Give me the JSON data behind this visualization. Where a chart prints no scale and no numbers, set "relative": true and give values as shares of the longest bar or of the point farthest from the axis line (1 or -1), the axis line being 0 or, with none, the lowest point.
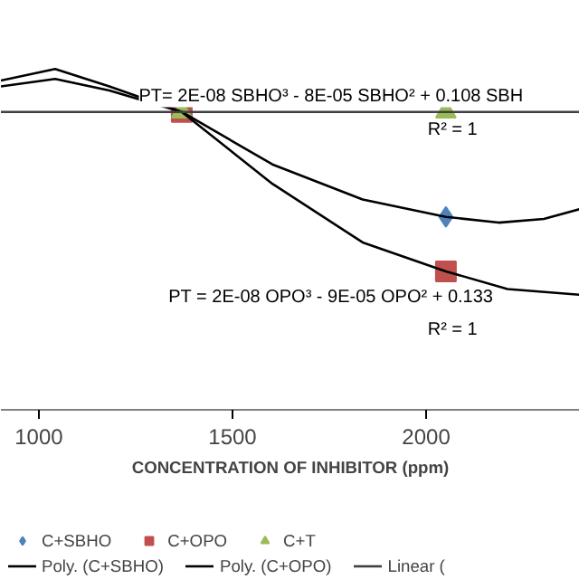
{
  "chart_data": {
    "type": "scatter",
    "relative": true,
    "xlabel": "CONCENTRATION OF INHIBITOR (ppm)",
    "xlim": [
      902,
      2397
    ],
    "xticks": [
      1000,
      1500,
      2000
    ],
    "legend": "bottom",
    "grid": false,
    "series": [
      {
        "name": "C+SBHO",
        "marker": "diamond",
        "color": "#4f81bd",
        "x": [
          2051
        ],
        "values": [
          0.566
        ]
      },
      {
        "name": "C+OPO",
        "marker": "square",
        "color": "#c0504d",
        "x": [
          1369,
          2051
        ],
        "values": [
          0.874,
          0.406
        ]
      },
      {
        "name": "C+T",
        "marker": "triangle",
        "color": "#9bbb59",
        "x": [
          1369,
          2051
        ],
        "values": [
          0.874,
          0.874
        ]
      },
      {
        "name": "Poly. (C+SBHO)",
        "type": "line",
        "color": "#000000",
        "x": [
          902,
          1042,
          1182,
          1369,
          1603,
          1836,
          2051,
          2187,
          2304,
          2397
        ],
        "values": [
          0.966,
          1.0,
          0.949,
          0.874,
          0.72,
          0.617,
          0.566,
          0.549,
          0.56,
          0.589
        ]
      },
      {
        "name": "Poly. (C+OPO)",
        "type": "line",
        "color": "#000000",
        "x": [
          902,
          1042,
          1182,
          1369,
          1603,
          1836,
          2051,
          2210,
          2397
        ],
        "values": [
          0.949,
          0.971,
          0.937,
          0.874,
          0.663,
          0.491,
          0.406,
          0.354,
          0.337
        ]
      },
      {
        "name": "Linear (",
        "type": "line",
        "color": "#404040",
        "x": [
          902,
          2397
        ],
        "values": [
          0.874,
          0.874
        ]
      }
    ],
    "annotations": [
      "PT= 2E-08 SBHO³ - 8E-05 SBHO² + 0.108 SBH",
      "R² = 1",
      "PT = 2E-08 OPO³ - 9E-05 OPO² + 0.133",
      "R² = 1"
    ]
  }
}
